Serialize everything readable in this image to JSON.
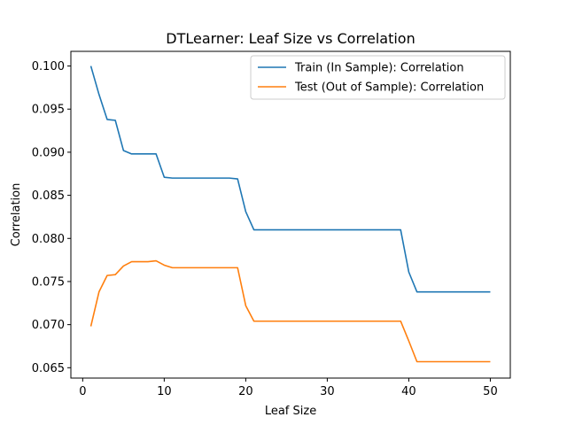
{
  "chart_data": {
    "type": "line",
    "title": "DTLearner: Leaf Size vs Correlation",
    "xlabel": "Leaf Size",
    "ylabel": "Correlation",
    "xlim": [
      -1.45,
      52.45
    ],
    "ylim": [
      0.0638,
      0.1017
    ],
    "xticks": [
      0,
      10,
      20,
      30,
      40,
      50
    ],
    "xtick_labels": [
      "0",
      "10",
      "20",
      "30",
      "40",
      "50"
    ],
    "yticks": [
      0.065,
      0.07,
      0.075,
      0.08,
      0.085,
      0.09,
      0.095,
      0.1
    ],
    "ytick_labels": [
      "0.065",
      "0.070",
      "0.075",
      "0.080",
      "0.085",
      "0.090",
      "0.095",
      "0.100"
    ],
    "grid": false,
    "legend_position": "top-right",
    "series": [
      {
        "name": "Train (In Sample): Correlation",
        "color": "#1f77b4",
        "points": [
          [
            1,
            0.1
          ],
          [
            2,
            0.0967
          ],
          [
            3,
            0.0938
          ],
          [
            4,
            0.0937
          ],
          [
            5,
            0.0902
          ],
          [
            6,
            0.0898
          ],
          [
            7,
            0.0898
          ],
          [
            8,
            0.0898
          ],
          [
            9,
            0.0898
          ],
          [
            10,
            0.0871
          ],
          [
            11,
            0.087
          ],
          [
            12,
            0.087
          ],
          [
            13,
            0.087
          ],
          [
            14,
            0.087
          ],
          [
            15,
            0.087
          ],
          [
            16,
            0.087
          ],
          [
            17,
            0.087
          ],
          [
            18,
            0.087
          ],
          [
            19,
            0.0869
          ],
          [
            20,
            0.0831
          ],
          [
            21,
            0.081
          ],
          [
            22,
            0.081
          ],
          [
            23,
            0.081
          ],
          [
            24,
            0.081
          ],
          [
            25,
            0.081
          ],
          [
            26,
            0.081
          ],
          [
            27,
            0.081
          ],
          [
            28,
            0.081
          ],
          [
            29,
            0.081
          ],
          [
            30,
            0.081
          ],
          [
            31,
            0.081
          ],
          [
            32,
            0.081
          ],
          [
            33,
            0.081
          ],
          [
            34,
            0.081
          ],
          [
            35,
            0.081
          ],
          [
            36,
            0.081
          ],
          [
            37,
            0.081
          ],
          [
            38,
            0.081
          ],
          [
            39,
            0.081
          ],
          [
            40,
            0.0761
          ],
          [
            41,
            0.0738
          ],
          [
            42,
            0.0738
          ],
          [
            43,
            0.0738
          ],
          [
            44,
            0.0738
          ],
          [
            45,
            0.0738
          ],
          [
            46,
            0.0738
          ],
          [
            47,
            0.0738
          ],
          [
            48,
            0.0738
          ],
          [
            49,
            0.0738
          ],
          [
            50,
            0.0738
          ]
        ]
      },
      {
        "name": "Test (Out of Sample): Correlation",
        "color": "#ff7f0e",
        "points": [
          [
            1,
            0.0698
          ],
          [
            2,
            0.0738
          ],
          [
            3,
            0.0757
          ],
          [
            4,
            0.0758
          ],
          [
            5,
            0.0768
          ],
          [
            6,
            0.0773
          ],
          [
            7,
            0.0773
          ],
          [
            8,
            0.0773
          ],
          [
            9,
            0.0774
          ],
          [
            10,
            0.0769
          ],
          [
            11,
            0.0766
          ],
          [
            12,
            0.0766
          ],
          [
            13,
            0.0766
          ],
          [
            14,
            0.0766
          ],
          [
            15,
            0.0766
          ],
          [
            16,
            0.0766
          ],
          [
            17,
            0.0766
          ],
          [
            18,
            0.0766
          ],
          [
            19,
            0.0766
          ],
          [
            20,
            0.0722
          ],
          [
            21,
            0.0704
          ],
          [
            22,
            0.0704
          ],
          [
            23,
            0.0704
          ],
          [
            24,
            0.0704
          ],
          [
            25,
            0.0704
          ],
          [
            26,
            0.0704
          ],
          [
            27,
            0.0704
          ],
          [
            28,
            0.0704
          ],
          [
            29,
            0.0704
          ],
          [
            30,
            0.0704
          ],
          [
            31,
            0.0704
          ],
          [
            32,
            0.0704
          ],
          [
            33,
            0.0704
          ],
          [
            34,
            0.0704
          ],
          [
            35,
            0.0704
          ],
          [
            36,
            0.0704
          ],
          [
            37,
            0.0704
          ],
          [
            38,
            0.0704
          ],
          [
            39,
            0.0704
          ],
          [
            40,
            0.0681
          ],
          [
            41,
            0.0657
          ],
          [
            42,
            0.0657
          ],
          [
            43,
            0.0657
          ],
          [
            44,
            0.0657
          ],
          [
            45,
            0.0657
          ],
          [
            46,
            0.0657
          ],
          [
            47,
            0.0657
          ],
          [
            48,
            0.0657
          ],
          [
            49,
            0.0657
          ],
          [
            50,
            0.0657
          ]
        ]
      }
    ]
  }
}
